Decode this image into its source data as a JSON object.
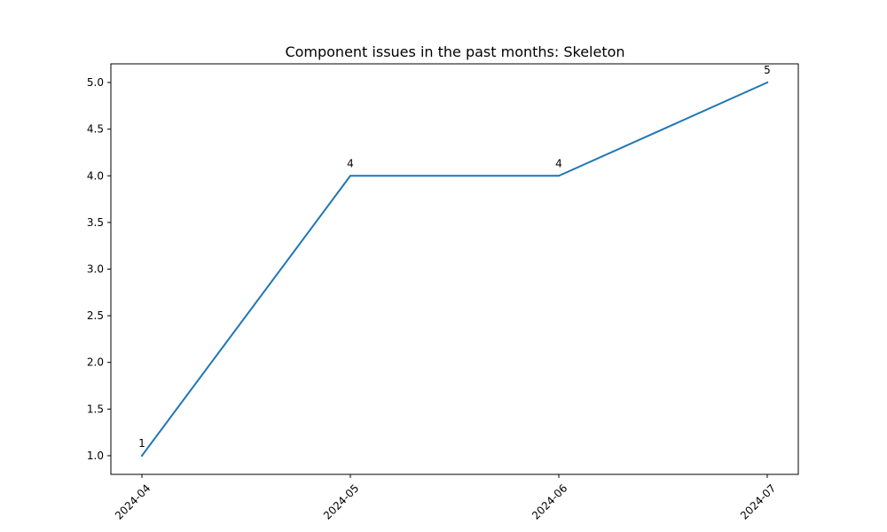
{
  "chart_data": {
    "type": "line",
    "title": "Component issues in the past months: Skeleton",
    "xlabel": "",
    "ylabel": "",
    "categories": [
      "2024-04",
      "2024-05",
      "2024-06",
      "2024-07"
    ],
    "series": [
      {
        "values": [
          1,
          4,
          4,
          5
        ],
        "color": "#1f77b4"
      }
    ],
    "data_labels": [
      "1",
      "4",
      "4",
      "5"
    ],
    "y_ticks": [
      "1.0",
      "1.5",
      "2.0",
      "2.5",
      "3.0",
      "3.5",
      "4.0",
      "4.5",
      "5.0"
    ],
    "ylim": [
      0.8,
      5.2
    ],
    "grid": false,
    "x_tick_rotation": "45 degrees"
  }
}
